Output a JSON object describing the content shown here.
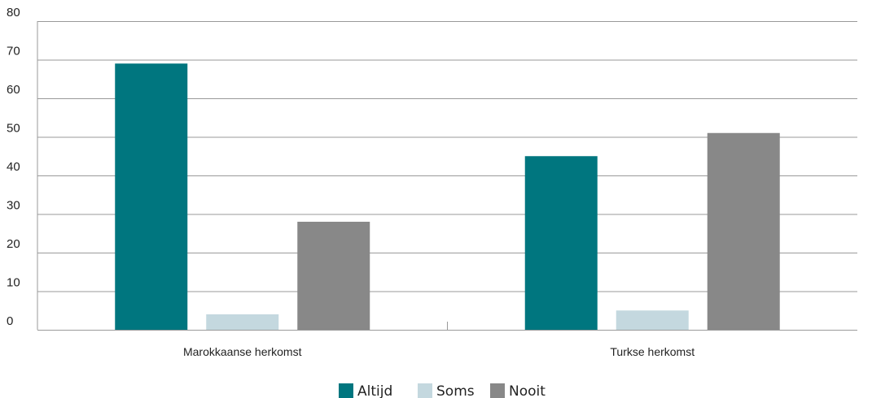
{
  "chart_data": {
    "type": "bar",
    "categories": [
      "Marokkaanse herkomst",
      "Turkse herkomst"
    ],
    "series": [
      {
        "name": "Altijd",
        "values": [
          69,
          45
        ],
        "color": "#00767f"
      },
      {
        "name": "Soms",
        "values": [
          4,
          5
        ],
        "color": "#c4d8df"
      },
      {
        "name": "Nooit",
        "values": [
          28,
          51
        ],
        "color": "#888888"
      }
    ],
    "ylim": [
      0,
      80
    ],
    "yticks": [
      0,
      10,
      20,
      30,
      40,
      50,
      60,
      70,
      80
    ],
    "grid": true,
    "legend": "bottom-center"
  }
}
